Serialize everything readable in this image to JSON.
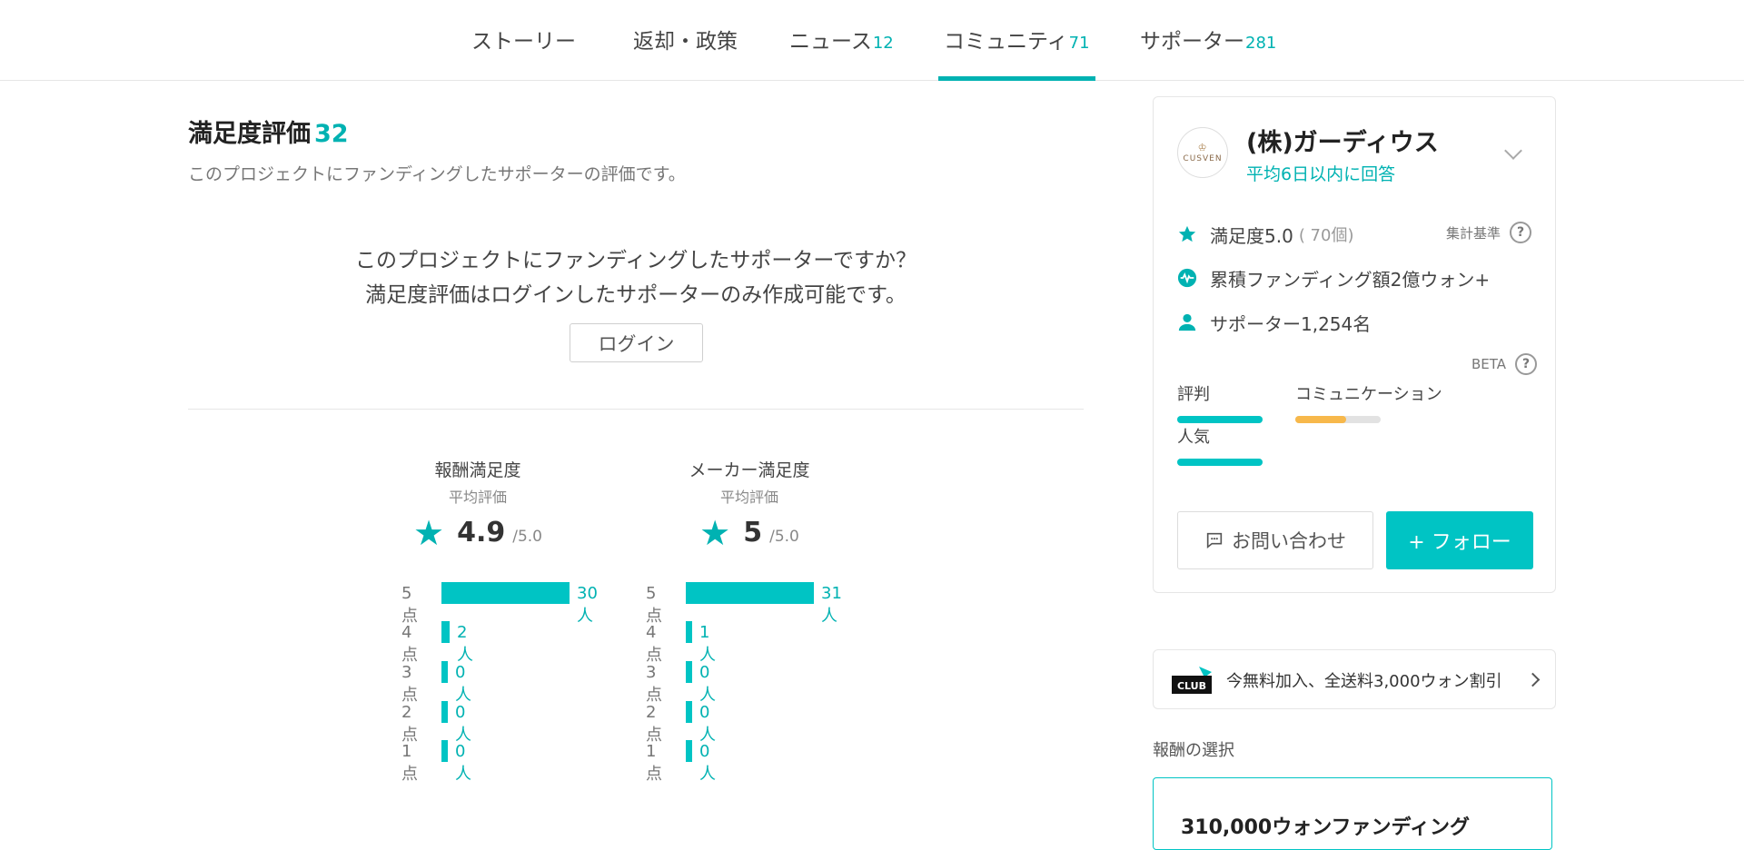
{
  "tabs": [
    {
      "label": "ストーリー",
      "count": ""
    },
    {
      "label": "返却・政策",
      "count": ""
    },
    {
      "label": "ニュース",
      "count": "12"
    },
    {
      "label": "コミュニティ",
      "count": "71"
    },
    {
      "label": "サポーター",
      "count": "281"
    }
  ],
  "review": {
    "title": "満足度評価",
    "count": "32",
    "description": "このプロジェクトにファンディングしたサポーターの評価です。",
    "prompt_line1": "このプロジェクトにファンディングしたサポーターですか？",
    "prompt_line2": "満足度評価はログインしたサポーターのみ作成可能です。",
    "login_label": "ログイン"
  },
  "ratings": [
    {
      "title": "報酬満足度",
      "subtitle": "平均評価",
      "score": "4.9",
      "max": "/5.0",
      "rows": [
        {
          "label": "5点",
          "value": "30人",
          "count": 30
        },
        {
          "label": "4点",
          "value": "2人",
          "count": 2
        },
        {
          "label": "3点",
          "value": "0人",
          "count": 0
        },
        {
          "label": "2点",
          "value": "0人",
          "count": 0
        },
        {
          "label": "1点",
          "value": "0人",
          "count": 0
        }
      ]
    },
    {
      "title": "メーカー満足度",
      "subtitle": "平均評価",
      "score": "5",
      "max": "/5.0",
      "rows": [
        {
          "label": "5点",
          "value": "31人",
          "count": 31
        },
        {
          "label": "4点",
          "value": "1人",
          "count": 1
        },
        {
          "label": "3点",
          "value": "0人",
          "count": 0
        },
        {
          "label": "2点",
          "value": "0人",
          "count": 0
        },
        {
          "label": "1点",
          "value": "0人",
          "count": 0
        }
      ]
    }
  ],
  "maker": {
    "logo_text": "CUSVEN",
    "name": "(株)ガーディウス",
    "response": "平均6日以内に回答",
    "satisfaction": "満足度5.0",
    "satisfaction_count": "( 70個)",
    "criteria_label": "集計基準",
    "funding": "累積ファンディング額2億ウォン+",
    "supporters": "サポーター1,254名",
    "beta_label": "BETA",
    "metrics": [
      {
        "label": "評判",
        "level": 1.0,
        "color": "#00c4c4"
      },
      {
        "label": "コミュニケーション",
        "level": 0.6,
        "color": "#f7b84b"
      },
      {
        "label": "人気",
        "level": 1.0,
        "color": "#00c4c4"
      }
    ],
    "inquiry_label": "お問い合わせ",
    "follow_label": "+ フォロー"
  },
  "club": {
    "badge": "CLUB",
    "text": "今無料加入、全送料3,000ウォン割引"
  },
  "rewards": {
    "title": "報酬の選択",
    "first_title": "310,000ウォンファンディング"
  },
  "colors": {
    "accent": "#00b2b2",
    "bar": "#00c4c4",
    "warning": "#f7b84b"
  }
}
